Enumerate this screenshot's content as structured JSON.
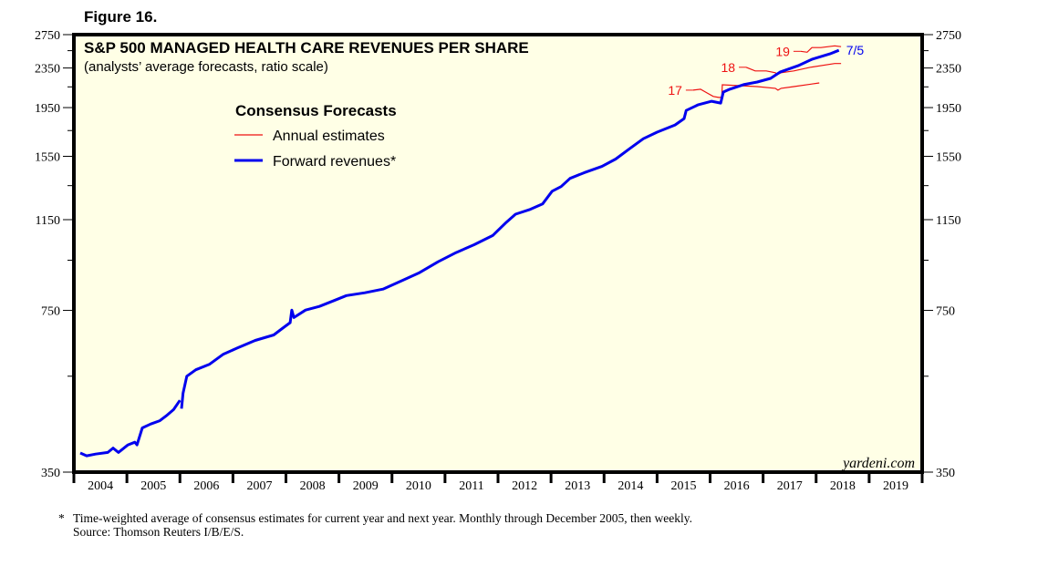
{
  "figure_label": "Figure 16.",
  "footnote": {
    "marker": "*",
    "line1": "Time-weighted average of consensus estimates for current year and next year. Monthly through December 2005, then weekly.",
    "line2": "Source: Thomson Reuters I/B/E/S."
  },
  "watermark": "yardeni.com",
  "colors": {
    "plot_background": "#ffffe6",
    "forward": "#0000ee",
    "annual": "#ee1111",
    "frame": "#000000"
  },
  "chart_data": {
    "type": "line",
    "title": "S&P 500 MANAGED HEALTH CARE REVENUES PER SHARE",
    "subtitle": "(analysts’ average forecasts, ratio scale)",
    "xlabel": "",
    "ylabel": "",
    "y_scale": "log",
    "ylim": [
      350,
      2750
    ],
    "xlim": [
      2004,
      2020
    ],
    "y_ticks_major": [
      350,
      750,
      1150,
      1550,
      1950,
      2350,
      2750
    ],
    "y_tick_labels": [
      "350",
      "750",
      "1150",
      "1550",
      "1950",
      "2350",
      "2750"
    ],
    "y_ticks_minor": [
      550,
      950,
      1350,
      1750,
      2150,
      2550
    ],
    "x_tick_labels": [
      "2004",
      "2005",
      "2006",
      "2007",
      "2008",
      "2009",
      "2010",
      "2011",
      "2012",
      "2013",
      "2014",
      "2015",
      "2016",
      "2017",
      "2018",
      "2019"
    ],
    "grid": false,
    "legend": {
      "title": "Consensus Forecasts",
      "placement": "top-left",
      "entries": [
        {
          "name": "Annual estimates",
          "color": "#ee1111",
          "style": "thin"
        },
        {
          "name": "Forward revenues*",
          "color": "#0000ee",
          "style": "thick"
        }
      ]
    },
    "series": [
      {
        "name": "Forward revenues*",
        "color": "#0000ee",
        "segments": [
          [
            [
              2004.12,
              383
            ],
            [
              2004.24,
              378
            ],
            [
              2004.41,
              381
            ],
            [
              2004.64,
              384
            ],
            [
              2004.74,
              392
            ],
            [
              2004.84,
              384
            ],
            [
              2005.02,
              398
            ],
            [
              2005.15,
              403
            ],
            [
              2005.19,
              398
            ],
            [
              2005.29,
              431
            ],
            [
              2005.45,
              439
            ],
            [
              2005.62,
              446
            ],
            [
              2005.76,
              458
            ],
            [
              2005.88,
              470
            ],
            [
              2006.0,
              491
            ]
          ],
          [
            [
              2006.03,
              472
            ],
            [
              2006.06,
              508
            ],
            [
              2006.13,
              550
            ],
            [
              2006.3,
              567
            ],
            [
              2006.56,
              582
            ],
            [
              2006.82,
              610
            ],
            [
              2007.08,
              628
            ],
            [
              2007.42,
              651
            ],
            [
              2007.77,
              668
            ],
            [
              2007.94,
              690
            ],
            [
              2008.08,
              708
            ],
            [
              2008.11,
              751
            ],
            [
              2008.15,
              725
            ],
            [
              2008.37,
              751
            ],
            [
              2008.63,
              764
            ],
            [
              2008.89,
              784
            ],
            [
              2009.14,
              804
            ],
            [
              2009.49,
              815
            ],
            [
              2009.83,
              829
            ],
            [
              2010.18,
              862
            ],
            [
              2010.52,
              896
            ],
            [
              2010.87,
              943
            ],
            [
              2011.21,
              985
            ],
            [
              2011.55,
              1022
            ],
            [
              2011.9,
              1067
            ],
            [
              2012.16,
              1137
            ],
            [
              2012.33,
              1180
            ],
            [
              2012.59,
              1205
            ],
            [
              2012.84,
              1238
            ],
            [
              2013.02,
              1315
            ],
            [
              2013.19,
              1344
            ],
            [
              2013.36,
              1397
            ],
            [
              2013.62,
              1434
            ],
            [
              2013.96,
              1478
            ],
            [
              2014.22,
              1530
            ],
            [
              2014.48,
              1606
            ],
            [
              2014.74,
              1684
            ],
            [
              2015.0,
              1737
            ],
            [
              2015.34,
              1797
            ],
            [
              2015.51,
              1852
            ],
            [
              2015.55,
              1924
            ],
            [
              2015.77,
              1975
            ],
            [
              2016.03,
              2009
            ],
            [
              2016.2,
              1992
            ],
            [
              2016.25,
              2098
            ],
            [
              2016.37,
              2126
            ],
            [
              2016.63,
              2172
            ],
            [
              2016.89,
              2200
            ],
            [
              2017.14,
              2238
            ],
            [
              2017.32,
              2305
            ],
            [
              2017.66,
              2375
            ],
            [
              2017.92,
              2448
            ],
            [
              2018.09,
              2480
            ],
            [
              2018.26,
              2512
            ],
            [
              2018.43,
              2554
            ]
          ]
        ],
        "end_label": "7/5"
      },
      {
        "name": "2017 annual estimate",
        "label": "17",
        "color": "#ee1111",
        "values": [
          [
            2015.68,
            2117
          ],
          [
            2015.82,
            2126
          ],
          [
            2015.94,
            2090
          ],
          [
            2016.06,
            2055
          ],
          [
            2016.16,
            2046
          ],
          [
            2016.22,
            2046
          ],
          [
            2016.23,
            2171
          ],
          [
            2016.89,
            2153
          ],
          [
            2017.23,
            2135
          ],
          [
            2017.28,
            2117
          ],
          [
            2017.34,
            2135
          ],
          [
            2017.58,
            2153
          ],
          [
            2018.06,
            2190
          ]
        ]
      },
      {
        "name": "2018 annual estimate",
        "label": "18",
        "color": "#ee1111",
        "values": [
          [
            2016.68,
            2358
          ],
          [
            2016.85,
            2318
          ],
          [
            2017.06,
            2318
          ],
          [
            2017.23,
            2298
          ],
          [
            2017.27,
            2279
          ],
          [
            2017.34,
            2298
          ],
          [
            2017.58,
            2318
          ],
          [
            2017.89,
            2358
          ],
          [
            2018.35,
            2400
          ],
          [
            2018.47,
            2400
          ]
        ]
      },
      {
        "name": "2019 annual estimate",
        "label": "19",
        "color": "#ee1111",
        "values": [
          [
            2017.71,
            2542
          ],
          [
            2017.83,
            2531
          ],
          [
            2017.92,
            2587
          ],
          [
            2018.09,
            2587
          ],
          [
            2018.35,
            2609
          ],
          [
            2018.47,
            2598
          ]
        ]
      }
    ]
  }
}
